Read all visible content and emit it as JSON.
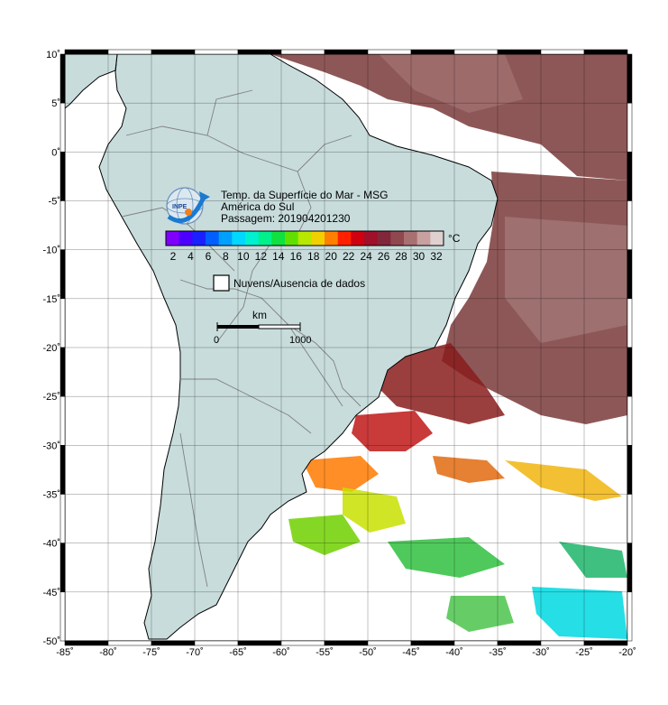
{
  "legend": {
    "title": "Temp. da Superfície do Mar - MSG",
    "region": "América do Sul",
    "pass": "Passagem: 201904201230",
    "unit": "°C",
    "colorbar_ticks": [
      "2",
      "4",
      "6",
      "8",
      "10",
      "12",
      "14",
      "16",
      "18",
      "20",
      "22",
      "24",
      "26",
      "28",
      "30",
      "32"
    ],
    "colorbar_colors": [
      "#8000ff",
      "#4c00ff",
      "#1a20ff",
      "#005fff",
      "#00a0ff",
      "#00d8ff",
      "#00f0d0",
      "#00f08c",
      "#10e040",
      "#60e000",
      "#b8e800",
      "#f0d000",
      "#ff8000",
      "#ff2000",
      "#d00010",
      "#a0102a",
      "#80283a",
      "#904850",
      "#a87070",
      "#c8a0a0",
      "#e0d0d0"
    ],
    "no_data_label": "Nuvens/Ausencia de dados",
    "logo_text": "INPE"
  },
  "scalebar": {
    "unit": "km",
    "start": "0",
    "end": "1000"
  },
  "axes": {
    "x_ticks": [
      "-85˚",
      "-80˚",
      "-75˚",
      "-70˚",
      "-65˚",
      "-60˚",
      "-55˚",
      "-50˚",
      "-45˚",
      "-40˚",
      "-35˚",
      "-30˚",
      "-25˚",
      "-20˚"
    ],
    "y_ticks": [
      "10˚",
      "5˚",
      "0˚",
      "-5˚",
      "-10˚",
      "-15˚",
      "-20˚",
      "-25˚",
      "-30˚",
      "-35˚",
      "-40˚",
      "-45˚",
      "-50˚"
    ]
  },
  "colors": {
    "land": "#c8dcdc",
    "land_border": "#808080",
    "coast": "#000000",
    "ocean_bg": "#ffffff"
  }
}
